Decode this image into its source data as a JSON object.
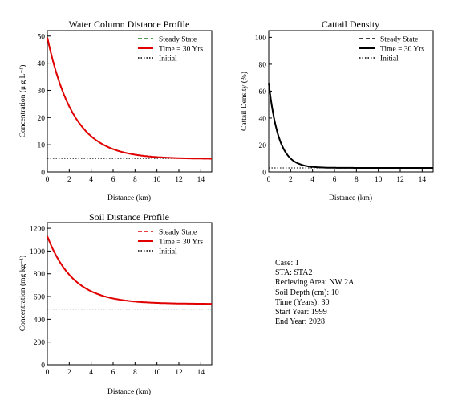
{
  "chart_data": [
    {
      "id": "water",
      "type": "line",
      "title": "Water Column Distance Profile",
      "xlabel": "Distance (km)",
      "ylabel": "Concentration (μ g L⁻¹)",
      "xlim": [
        0,
        15
      ],
      "ylim": [
        0,
        52
      ],
      "xticks": [
        0,
        2,
        4,
        6,
        8,
        10,
        12,
        14
      ],
      "yticks": [
        0,
        10,
        20,
        30,
        40,
        50
      ],
      "legend_position": "top-right",
      "series": [
        {
          "name": "Steady State",
          "style": "dashed",
          "color": "#1a7f1a",
          "x": [
            0,
            15
          ],
          "y": [
            49.5,
            4.8
          ],
          "model": {
            "form": "exp",
            "c0": 49.5,
            "cinf": 4.8,
            "k": 0.42
          }
        },
        {
          "name": "Time = 30 Yrs",
          "style": "solid",
          "color": "#e00000",
          "x": [
            0,
            15
          ],
          "y": [
            49.5,
            4.8
          ],
          "model": {
            "form": "exp",
            "c0": 49.5,
            "cinf": 4.8,
            "k": 0.42
          }
        },
        {
          "name": "Initial",
          "style": "dotted",
          "color": "#000000",
          "x": [
            0,
            15
          ],
          "y": [
            5,
            5
          ]
        }
      ]
    },
    {
      "id": "cattail",
      "type": "line",
      "title": "Cattail Density",
      "xlabel": "Distance (km)",
      "ylabel": "Cattail Density (%)",
      "xlim": [
        0,
        15
      ],
      "ylim": [
        0,
        105
      ],
      "xticks": [
        0,
        2,
        4,
        6,
        8,
        10,
        12,
        14
      ],
      "yticks": [
        0,
        20,
        40,
        60,
        80,
        100
      ],
      "legend_position": "top-right",
      "series": [
        {
          "name": "Steady State",
          "style": "dashed",
          "color": "#000000",
          "x": [
            0,
            15
          ],
          "y": [
            66,
            3
          ],
          "model": {
            "form": "exp",
            "c0": 66,
            "cinf": 3,
            "k": 1.1
          }
        },
        {
          "name": "Time = 30 Yrs",
          "style": "solid",
          "color": "#000000",
          "x": [
            0,
            15
          ],
          "y": [
            66,
            3
          ],
          "model": {
            "form": "exp",
            "c0": 66,
            "cinf": 3,
            "k": 1.1
          }
        },
        {
          "name": "Initial",
          "style": "dotted",
          "color": "#000000",
          "x": [
            0,
            15
          ],
          "y": [
            3,
            3
          ]
        }
      ]
    },
    {
      "id": "soil",
      "type": "line",
      "title": "Soil Distance Profile",
      "xlabel": "Distance (km)",
      "ylabel": "Concentration (mg kg⁻¹)",
      "xlim": [
        0,
        15
      ],
      "ylim": [
        0,
        1250
      ],
      "xticks": [
        0,
        2,
        4,
        6,
        8,
        10,
        12,
        14
      ],
      "yticks": [
        0,
        200,
        400,
        600,
        800,
        1000,
        1200
      ],
      "legend_position": "top-right",
      "series": [
        {
          "name": "Steady State",
          "style": "dashed",
          "color": "#e00000",
          "x": [
            0,
            15
          ],
          "y": [
            1130,
            535
          ],
          "model": {
            "form": "exp",
            "c0": 1130,
            "cinf": 535,
            "k": 0.42
          }
        },
        {
          "name": "Time = 30 Yrs",
          "style": "solid",
          "color": "#e00000",
          "x": [
            0,
            15
          ],
          "y": [
            1130,
            535
          ],
          "model": {
            "form": "exp",
            "c0": 1130,
            "cinf": 535,
            "k": 0.42
          }
        },
        {
          "name": "Initial",
          "style": "dotted",
          "color": "#000000",
          "x": [
            0,
            15
          ],
          "y": [
            490,
            490
          ]
        }
      ]
    }
  ],
  "case_info": {
    "case": "Case: 1",
    "sta": "STA: STA2",
    "receiving_area": "Recieving Area: NW 2A",
    "soil_depth": "Soil Depth (cm): 10",
    "time_years": "Time (Years): 30",
    "start_year": "Start Year: 1999",
    "end_year": "End Year: 2028"
  }
}
